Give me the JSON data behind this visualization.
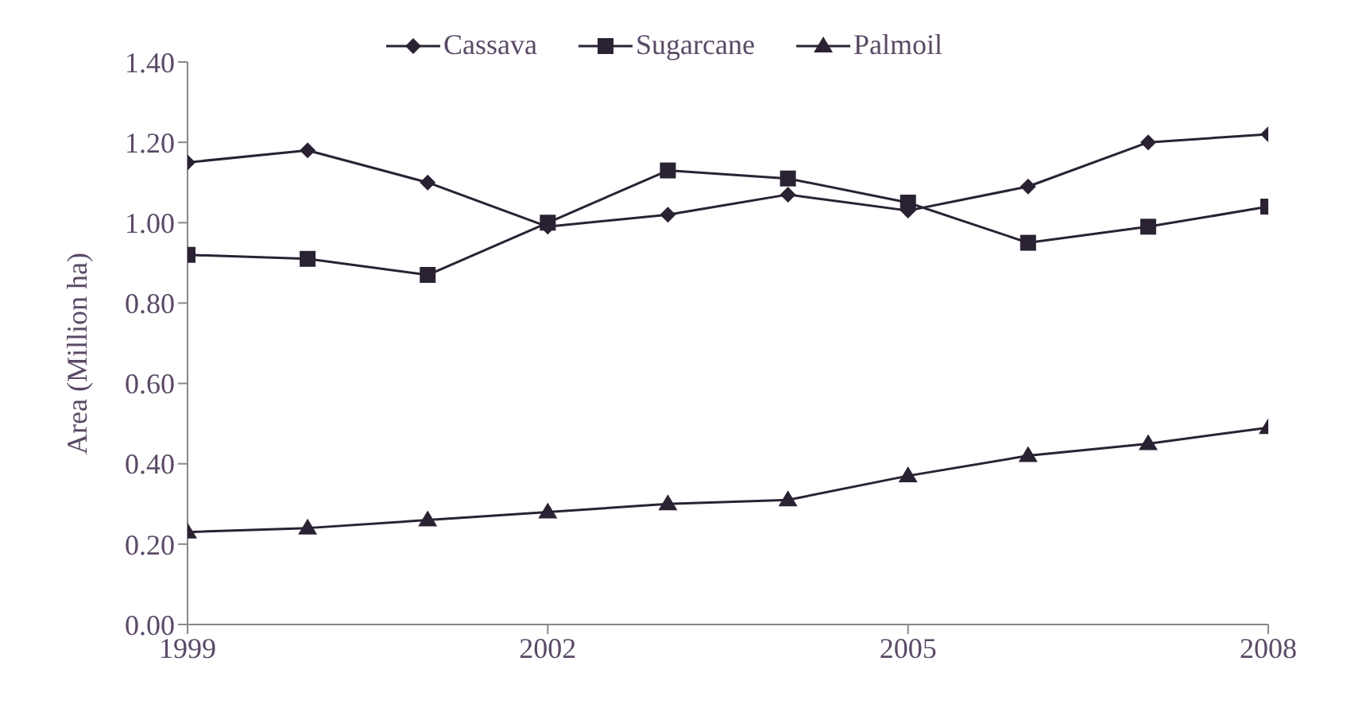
{
  "chart_data": {
    "type": "line",
    "ylabel": "Area (Million ha)",
    "x": [
      1999,
      2000,
      2001,
      2002,
      2003,
      2004,
      2005,
      2006,
      2007,
      2008
    ],
    "series": [
      {
        "name": "Cassava",
        "color": "#2a2233",
        "marker": "diamond",
        "values": [
          1.15,
          1.18,
          1.1,
          0.99,
          1.02,
          1.07,
          1.03,
          1.09,
          1.2,
          1.22
        ]
      },
      {
        "name": "Sugarcane",
        "color": "#2a2233",
        "marker": "square",
        "values": [
          0.92,
          0.91,
          0.87,
          1.0,
          1.13,
          1.11,
          1.05,
          0.95,
          0.99,
          1.04
        ]
      },
      {
        "name": "Palmoil",
        "color": "#2a2233",
        "marker": "triangle",
        "values": [
          0.23,
          0.24,
          0.26,
          0.28,
          0.3,
          0.31,
          0.37,
          0.42,
          0.45,
          0.49
        ]
      }
    ],
    "xlim": [
      1999,
      2008
    ],
    "xticks": [
      1999,
      2002,
      2005,
      2008
    ],
    "ylim": [
      0,
      1.4
    ],
    "yticks": [
      {
        "value": 0,
        "label": "0.00"
      },
      {
        "value": 0.2,
        "label": "0.20"
      },
      {
        "value": 0.4,
        "label": "0.40"
      },
      {
        "value": 0.6,
        "label": "0.60"
      },
      {
        "value": 0.8,
        "label": "0.80"
      },
      {
        "value": 1.0,
        "label": "1.00"
      },
      {
        "value": 1.2,
        "label": "1.20"
      },
      {
        "value": 1.4,
        "label": "1.40"
      }
    ],
    "grid": false,
    "legend": "top",
    "line_style": "solid"
  }
}
